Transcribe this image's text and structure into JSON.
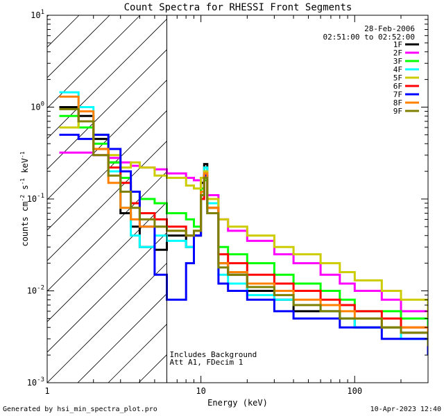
{
  "chart_data": {
    "type": "line",
    "title": "Count Spectra for RHESSI Front Segments",
    "xlabel": "Energy (keV)",
    "ylabel_parts": [
      "counts cm",
      "-2",
      " s",
      "-1",
      " keV",
      "-1"
    ],
    "xscale": "log",
    "yscale": "log",
    "xlim": [
      1,
      300
    ],
    "ylim": [
      0.001,
      10
    ],
    "x_ticks": [
      {
        "v": 1,
        "label": "1"
      },
      {
        "v": 10,
        "label": "10"
      },
      {
        "v": 100,
        "label": "100"
      }
    ],
    "y_ticks": [
      {
        "v": 0.001,
        "base": "10",
        "exp": "-3"
      },
      {
        "v": 0.01,
        "base": "10",
        "exp": "-2"
      },
      {
        "v": 0.1,
        "base": "10",
        "exp": "-1"
      },
      {
        "v": 1,
        "base": "10",
        "exp": "0"
      },
      {
        "v": 10,
        "base": "10",
        "exp": "1"
      }
    ],
    "hatched_region": [
      1,
      6
    ],
    "threshold_line": 6,
    "date": "28-Feb-2006",
    "time_range": "02:51:00 to 02:52:00",
    "notes": [
      "Includes Background",
      "Att A1, FDecim  1"
    ],
    "series": [
      {
        "name": "1F",
        "color": "#000000",
        "x": [
          1.2,
          1.6,
          2,
          2.5,
          3,
          3.5,
          4,
          5,
          6,
          8,
          9,
          10,
          10.5,
          11,
          13,
          15,
          20,
          30,
          40,
          60,
          80,
          100,
          150,
          200,
          300
        ],
        "y": [
          1.0,
          0.8,
          0.45,
          0.25,
          0.07,
          0.05,
          0.03,
          0.028,
          0.04,
          0.03,
          0.04,
          0.15,
          0.24,
          0.1,
          0.02,
          0.015,
          0.01,
          0.008,
          0.006,
          0.006,
          0.005,
          0.004,
          0.004,
          0.0035,
          0.0025
        ]
      },
      {
        "name": "2F",
        "color": "#ff00ff",
        "x": [
          1.2,
          1.6,
          2,
          2.5,
          3,
          3.5,
          4,
          5,
          6,
          8,
          9,
          10,
          10.5,
          11,
          13,
          15,
          20,
          30,
          40,
          60,
          80,
          100,
          150,
          200,
          300
        ],
        "y": [
          0.32,
          0.32,
          0.3,
          0.28,
          0.25,
          0.23,
          0.22,
          0.21,
          0.19,
          0.17,
          0.16,
          0.17,
          0.2,
          0.11,
          0.06,
          0.045,
          0.035,
          0.025,
          0.02,
          0.015,
          0.012,
          0.01,
          0.008,
          0.006,
          0.004
        ]
      },
      {
        "name": "3F",
        "color": "#00ff00",
        "x": [
          1.2,
          1.6,
          2,
          2.5,
          3,
          3.5,
          4,
          5,
          6,
          8,
          9,
          10,
          10.5,
          11,
          13,
          15,
          20,
          30,
          40,
          60,
          80,
          100,
          150,
          200,
          300
        ],
        "y": [
          0.8,
          0.6,
          0.4,
          0.25,
          0.17,
          0.12,
          0.1,
          0.09,
          0.07,
          0.06,
          0.05,
          0.13,
          0.16,
          0.08,
          0.03,
          0.025,
          0.02,
          0.015,
          0.012,
          0.01,
          0.008,
          0.006,
          0.006,
          0.005,
          0.003
        ]
      },
      {
        "name": "4F",
        "color": "#00ffff",
        "x": [
          1.2,
          1.6,
          2,
          2.5,
          3,
          3.5,
          4,
          5,
          6,
          8,
          9,
          10,
          10.5,
          11,
          13,
          15,
          20,
          30,
          40,
          60,
          80,
          100,
          150,
          200,
          300
        ],
        "y": [
          1.45,
          1.0,
          0.5,
          0.2,
          0.08,
          0.04,
          0.03,
          0.04,
          0.035,
          0.03,
          0.04,
          0.12,
          0.22,
          0.09,
          0.015,
          0.012,
          0.009,
          0.008,
          0.007,
          0.006,
          0.005,
          0.004,
          0.004,
          0.003,
          0.0025
        ]
      },
      {
        "name": "5F",
        "color": "#cccc00",
        "x": [
          1.2,
          1.6,
          2,
          2.5,
          3,
          3.5,
          4,
          5,
          6,
          8,
          9,
          10,
          10.5,
          11,
          13,
          15,
          20,
          30,
          40,
          60,
          80,
          100,
          150,
          200,
          300
        ],
        "y": [
          0.6,
          0.7,
          0.5,
          0.3,
          0.22,
          0.25,
          0.22,
          0.18,
          0.17,
          0.14,
          0.13,
          0.17,
          0.2,
          0.1,
          0.06,
          0.05,
          0.04,
          0.03,
          0.025,
          0.02,
          0.016,
          0.013,
          0.01,
          0.008,
          0.005
        ]
      },
      {
        "name": "6F",
        "color": "#ff0000",
        "x": [
          1.2,
          1.6,
          2,
          2.5,
          3,
          3.5,
          4,
          5,
          6,
          8,
          9,
          10,
          10.5,
          11,
          13,
          15,
          20,
          30,
          40,
          60,
          80,
          100,
          150,
          200,
          300
        ],
        "y": [
          0.95,
          0.7,
          0.35,
          0.22,
          0.15,
          0.09,
          0.07,
          0.06,
          0.05,
          0.04,
          0.04,
          0.1,
          0.18,
          0.08,
          0.025,
          0.02,
          0.015,
          0.012,
          0.01,
          0.008,
          0.007,
          0.006,
          0.005,
          0.004,
          0.003
        ]
      },
      {
        "name": "7F",
        "color": "#0000ff",
        "x": [
          1.2,
          1.6,
          2,
          2.5,
          3,
          3.5,
          4,
          5,
          6,
          8,
          9,
          10,
          10.5,
          11,
          13,
          15,
          20,
          30,
          40,
          60,
          80,
          100,
          150,
          200,
          300
        ],
        "y": [
          0.5,
          0.45,
          0.5,
          0.35,
          0.2,
          0.12,
          0.05,
          0.015,
          0.008,
          0.02,
          0.04,
          0.11,
          0.18,
          0.07,
          0.012,
          0.01,
          0.008,
          0.006,
          0.005,
          0.005,
          0.004,
          0.004,
          0.003,
          0.003,
          0.002
        ]
      },
      {
        "name": "8F",
        "color": "#ff8000",
        "x": [
          1.2,
          1.6,
          2,
          2.5,
          3,
          3.5,
          4,
          5,
          6,
          8,
          9,
          10,
          10.5,
          11,
          13,
          15,
          20,
          30,
          40,
          60,
          80,
          100,
          150,
          200,
          300
        ],
        "y": [
          1.3,
          0.9,
          0.35,
          0.15,
          0.08,
          0.06,
          0.05,
          0.05,
          0.045,
          0.04,
          0.045,
          0.12,
          0.19,
          0.08,
          0.02,
          0.016,
          0.012,
          0.01,
          0.008,
          0.007,
          0.006,
          0.005,
          0.004,
          0.004,
          0.003
        ]
      },
      {
        "name": "9F",
        "color": "#808000",
        "x": [
          1.2,
          1.6,
          2,
          2.5,
          3,
          3.5,
          4,
          5,
          6,
          8,
          9,
          10,
          10.5,
          11,
          13,
          15,
          20,
          30,
          40,
          60,
          80,
          100,
          150,
          200,
          300
        ],
        "y": [
          0.95,
          0.7,
          0.3,
          0.18,
          0.12,
          0.08,
          0.06,
          0.05,
          0.045,
          0.04,
          0.045,
          0.11,
          0.17,
          0.07,
          0.018,
          0.015,
          0.011,
          0.009,
          0.007,
          0.006,
          0.005,
          0.005,
          0.004,
          0.0035,
          0.0025
        ]
      }
    ]
  },
  "footer": {
    "generated_by": "Generated by hsi_min_spectra_plot.pro",
    "timestamp": "10-Apr-2023 12:40"
  }
}
